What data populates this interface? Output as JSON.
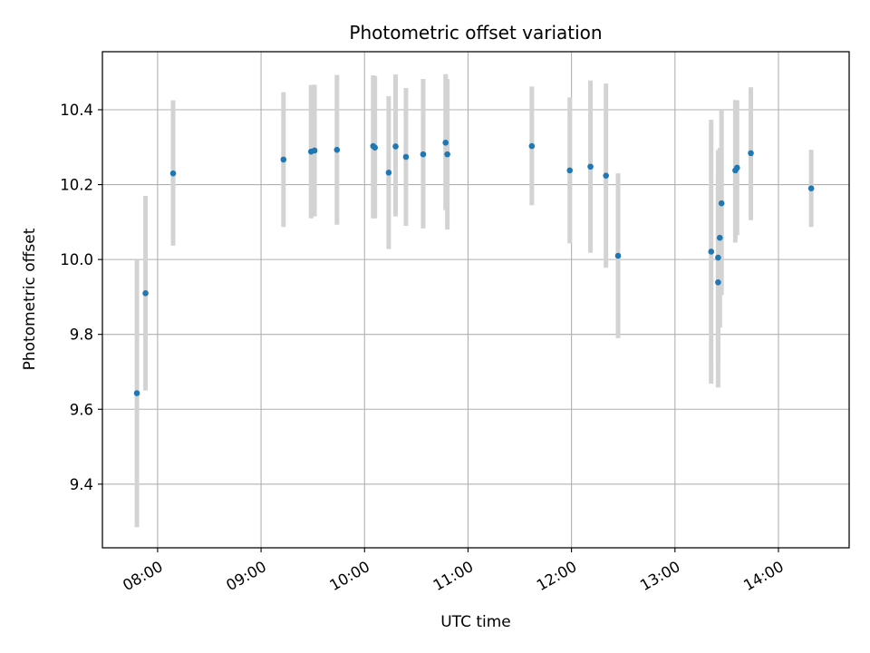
{
  "chart_data": {
    "type": "scatter",
    "title": "Photometric offset variation",
    "xlabel": "UTC time",
    "ylabel": "Photometric offset",
    "x_unit": "UTC time of day (HH:MM)",
    "xlim": [
      "07:28",
      "14:41"
    ],
    "ylim": [
      9.23,
      10.555
    ],
    "x_ticks": [
      "08:00",
      "09:00",
      "10:00",
      "11:00",
      "12:00",
      "13:00",
      "14:00"
    ],
    "y_ticks": [
      "9.4",
      "9.6",
      "9.8",
      "10.0",
      "10.2",
      "10.4"
    ],
    "grid": true,
    "marker_color": "#1f77b4",
    "errorbar_color": "#d3d3d3",
    "series": [
      {
        "points": [
          {
            "x": "07:48",
            "y": 9.643,
            "ylow": 9.285,
            "yhigh": 10.0
          },
          {
            "x": "07:53",
            "y": 9.91,
            "ylow": 9.65,
            "yhigh": 10.17
          },
          {
            "x": "08:09",
            "y": 10.23,
            "ylow": 10.037,
            "yhigh": 10.425
          },
          {
            "x": "09:13",
            "y": 10.267,
            "ylow": 10.087,
            "yhigh": 10.447
          },
          {
            "x": "09:29",
            "y": 10.288,
            "ylow": 10.11,
            "yhigh": 10.466
          },
          {
            "x": "09:31",
            "y": 10.291,
            "ylow": 10.115,
            "yhigh": 10.467
          },
          {
            "x": "09:44",
            "y": 10.293,
            "ylow": 10.093,
            "yhigh": 10.493
          },
          {
            "x": "10:05",
            "y": 10.303,
            "ylow": 10.11,
            "yhigh": 10.492
          },
          {
            "x": "10:06",
            "y": 10.299,
            "ylow": 10.11,
            "yhigh": 10.49
          },
          {
            "x": "10:14",
            "y": 10.232,
            "ylow": 10.028,
            "yhigh": 10.436
          },
          {
            "x": "10:18",
            "y": 10.302,
            "ylow": 10.115,
            "yhigh": 10.494
          },
          {
            "x": "10:24",
            "y": 10.274,
            "ylow": 10.09,
            "yhigh": 10.458
          },
          {
            "x": "10:34",
            "y": 10.281,
            "ylow": 10.083,
            "yhigh": 10.482
          },
          {
            "x": "10:47",
            "y": 10.312,
            "ylow": 10.132,
            "yhigh": 10.495
          },
          {
            "x": "10:48",
            "y": 10.281,
            "ylow": 10.08,
            "yhigh": 10.482
          },
          {
            "x": "11:37",
            "y": 10.303,
            "ylow": 10.145,
            "yhigh": 10.462
          },
          {
            "x": "11:59",
            "y": 10.238,
            "ylow": 10.043,
            "yhigh": 10.433
          },
          {
            "x": "12:11",
            "y": 10.248,
            "ylow": 10.018,
            "yhigh": 10.478
          },
          {
            "x": "12:20",
            "y": 10.224,
            "ylow": 9.978,
            "yhigh": 10.47
          },
          {
            "x": "12:27",
            "y": 10.01,
            "ylow": 9.79,
            "yhigh": 10.23
          },
          {
            "x": "13:21",
            "y": 10.021,
            "ylow": 9.668,
            "yhigh": 10.373
          },
          {
            "x": "13:25",
            "y": 9.939,
            "ylow": 9.658,
            "yhigh": 10.22
          },
          {
            "x": "13:25",
            "y": 10.005,
            "ylow": 9.718,
            "yhigh": 10.292
          },
          {
            "x": "13:26",
            "y": 10.058,
            "ylow": 9.818,
            "yhigh": 10.298
          },
          {
            "x": "13:27",
            "y": 10.15,
            "ylow": 9.905,
            "yhigh": 10.4
          },
          {
            "x": "13:35",
            "y": 10.238,
            "ylow": 10.045,
            "yhigh": 10.426
          },
          {
            "x": "13:36",
            "y": 10.245,
            "ylow": 10.065,
            "yhigh": 10.425
          },
          {
            "x": "13:44",
            "y": 10.284,
            "ylow": 10.105,
            "yhigh": 10.46
          },
          {
            "x": "14:19",
            "y": 10.19,
            "ylow": 10.087,
            "yhigh": 10.293
          }
        ]
      }
    ]
  }
}
